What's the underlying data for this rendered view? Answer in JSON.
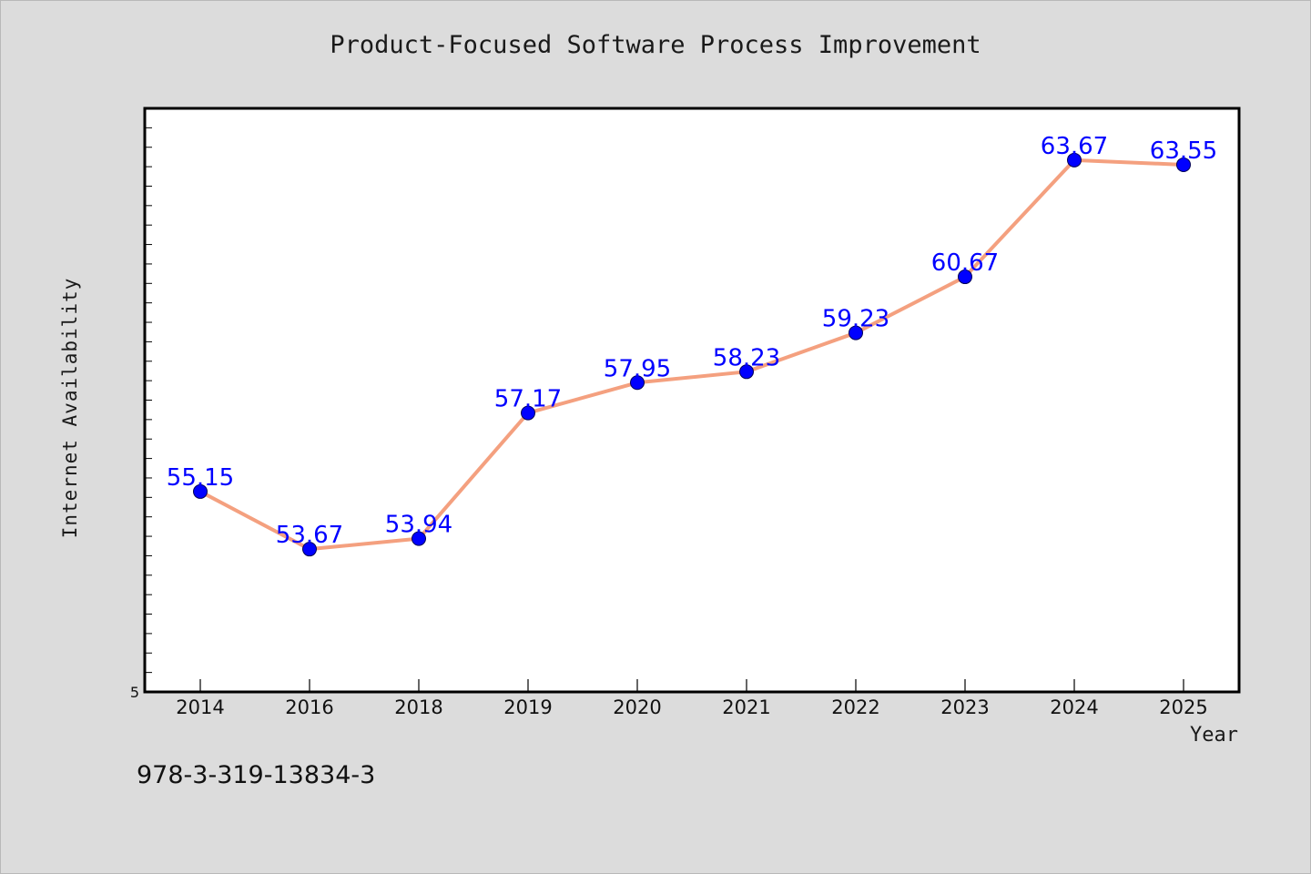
{
  "chart_data": {
    "type": "line",
    "title": "Product-Focused Software Process Improvement",
    "xlabel": "Year",
    "ylabel": "Internet Availability",
    "categories": [
      "2014",
      "2016",
      "2018",
      "2019",
      "2020",
      "2021",
      "2022",
      "2023",
      "2024",
      "2025"
    ],
    "series": [
      {
        "values": [
          55.15,
          53.67,
          53.94,
          57.17,
          57.95,
          58.23,
          59.23,
          60.67,
          63.67,
          63.55
        ]
      }
    ],
    "data_labels": [
      "55.15",
      "53.67",
      "53.94",
      "57.17",
      "57.95",
      "58.23",
      "59.23",
      "60.67",
      "63.67",
      "63.55"
    ],
    "y_tick_labels": [
      "5"
    ],
    "ylim": [
      50.0,
      65.0
    ],
    "grid": false,
    "legend": "none",
    "colors": {
      "line": "#f4a07f",
      "marker": "#0000ff",
      "label": "#0000ff",
      "plot_background": "#ffffff",
      "page_background": "#dcdcdc"
    }
  },
  "footnote": "978-3-319-13834-3"
}
